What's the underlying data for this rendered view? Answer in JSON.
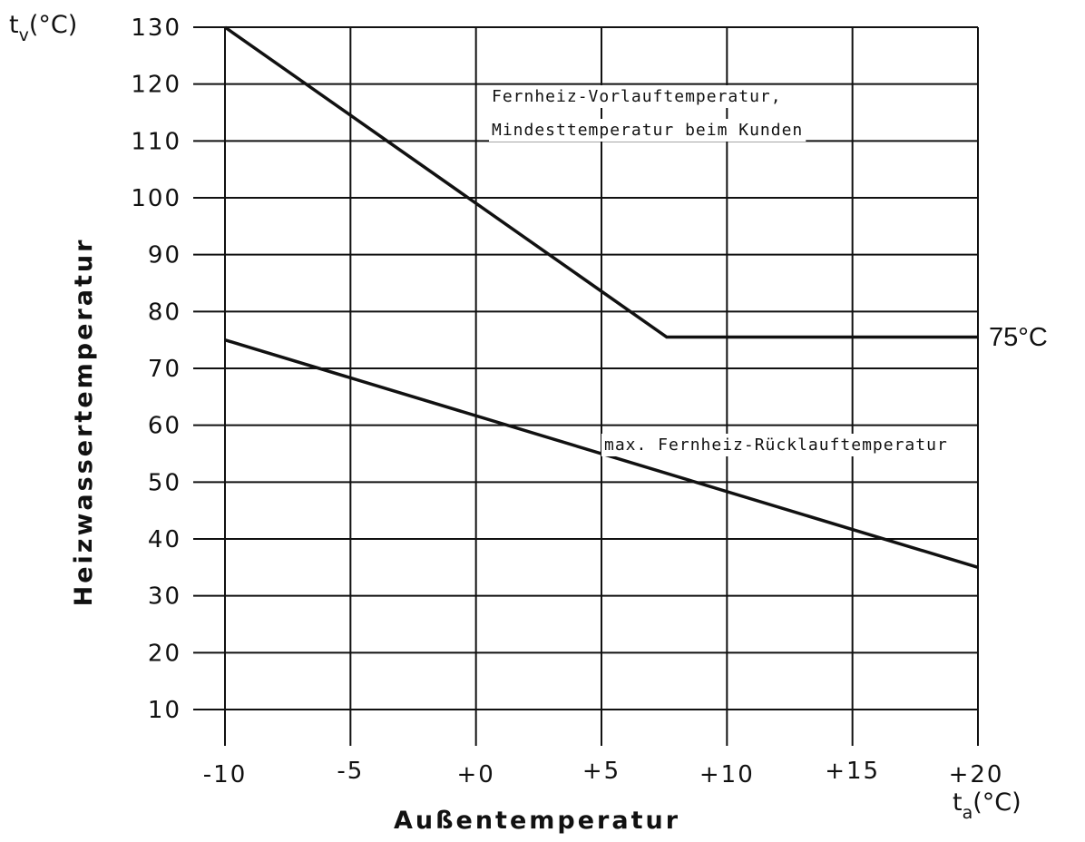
{
  "chart_data": {
    "type": "line",
    "xlabel": "Außentemperatur",
    "ylabel": "Heizwassertemperatur",
    "y_unit": {
      "symbol": "t",
      "sub": "v",
      "unit": "(°C)"
    },
    "x_unit": {
      "symbol": "t",
      "sub": "a",
      "unit": "(°C)"
    },
    "xlim": [
      -10,
      20
    ],
    "ylim": [
      10,
      130
    ],
    "grid": true,
    "x_ticks": [
      {
        "value": -10,
        "label": "-10"
      },
      {
        "value": -5,
        "label": "-5"
      },
      {
        "value": 0,
        "label": "+0"
      },
      {
        "value": 5,
        "label": "+5"
      },
      {
        "value": 10,
        "label": "+10"
      },
      {
        "value": 15,
        "label": "+15"
      },
      {
        "value": 20,
        "label": "+20"
      }
    ],
    "y_ticks": [
      {
        "value": 10,
        "label": "10"
      },
      {
        "value": 20,
        "label": "20"
      },
      {
        "value": 30,
        "label": "30"
      },
      {
        "value": 40,
        "label": "40"
      },
      {
        "value": 50,
        "label": "50"
      },
      {
        "value": 60,
        "label": "60"
      },
      {
        "value": 70,
        "label": "70"
      },
      {
        "value": 80,
        "label": "80"
      },
      {
        "value": 90,
        "label": "90"
      },
      {
        "value": 100,
        "label": "100"
      },
      {
        "value": 110,
        "label": "110"
      },
      {
        "value": 120,
        "label": "120"
      },
      {
        "value": 130,
        "label": "130"
      }
    ],
    "series": [
      {
        "label_lines": [
          "Fernheiz-Vorlauftemperatur,",
          "Mindesttemperatur beim Kunden"
        ],
        "points": [
          [
            -10,
            130
          ],
          [
            7.6,
            75.5
          ],
          [
            20,
            75.5
          ]
        ]
      },
      {
        "label_lines": [
          "max. Fernheiz-Rücklauftemperatur"
        ],
        "points": [
          [
            -10,
            75
          ],
          [
            20,
            35
          ]
        ]
      }
    ],
    "end_label": "75°C",
    "colors": {
      "line": "#111111",
      "grid": "#111111",
      "background": "#ffffff"
    }
  }
}
